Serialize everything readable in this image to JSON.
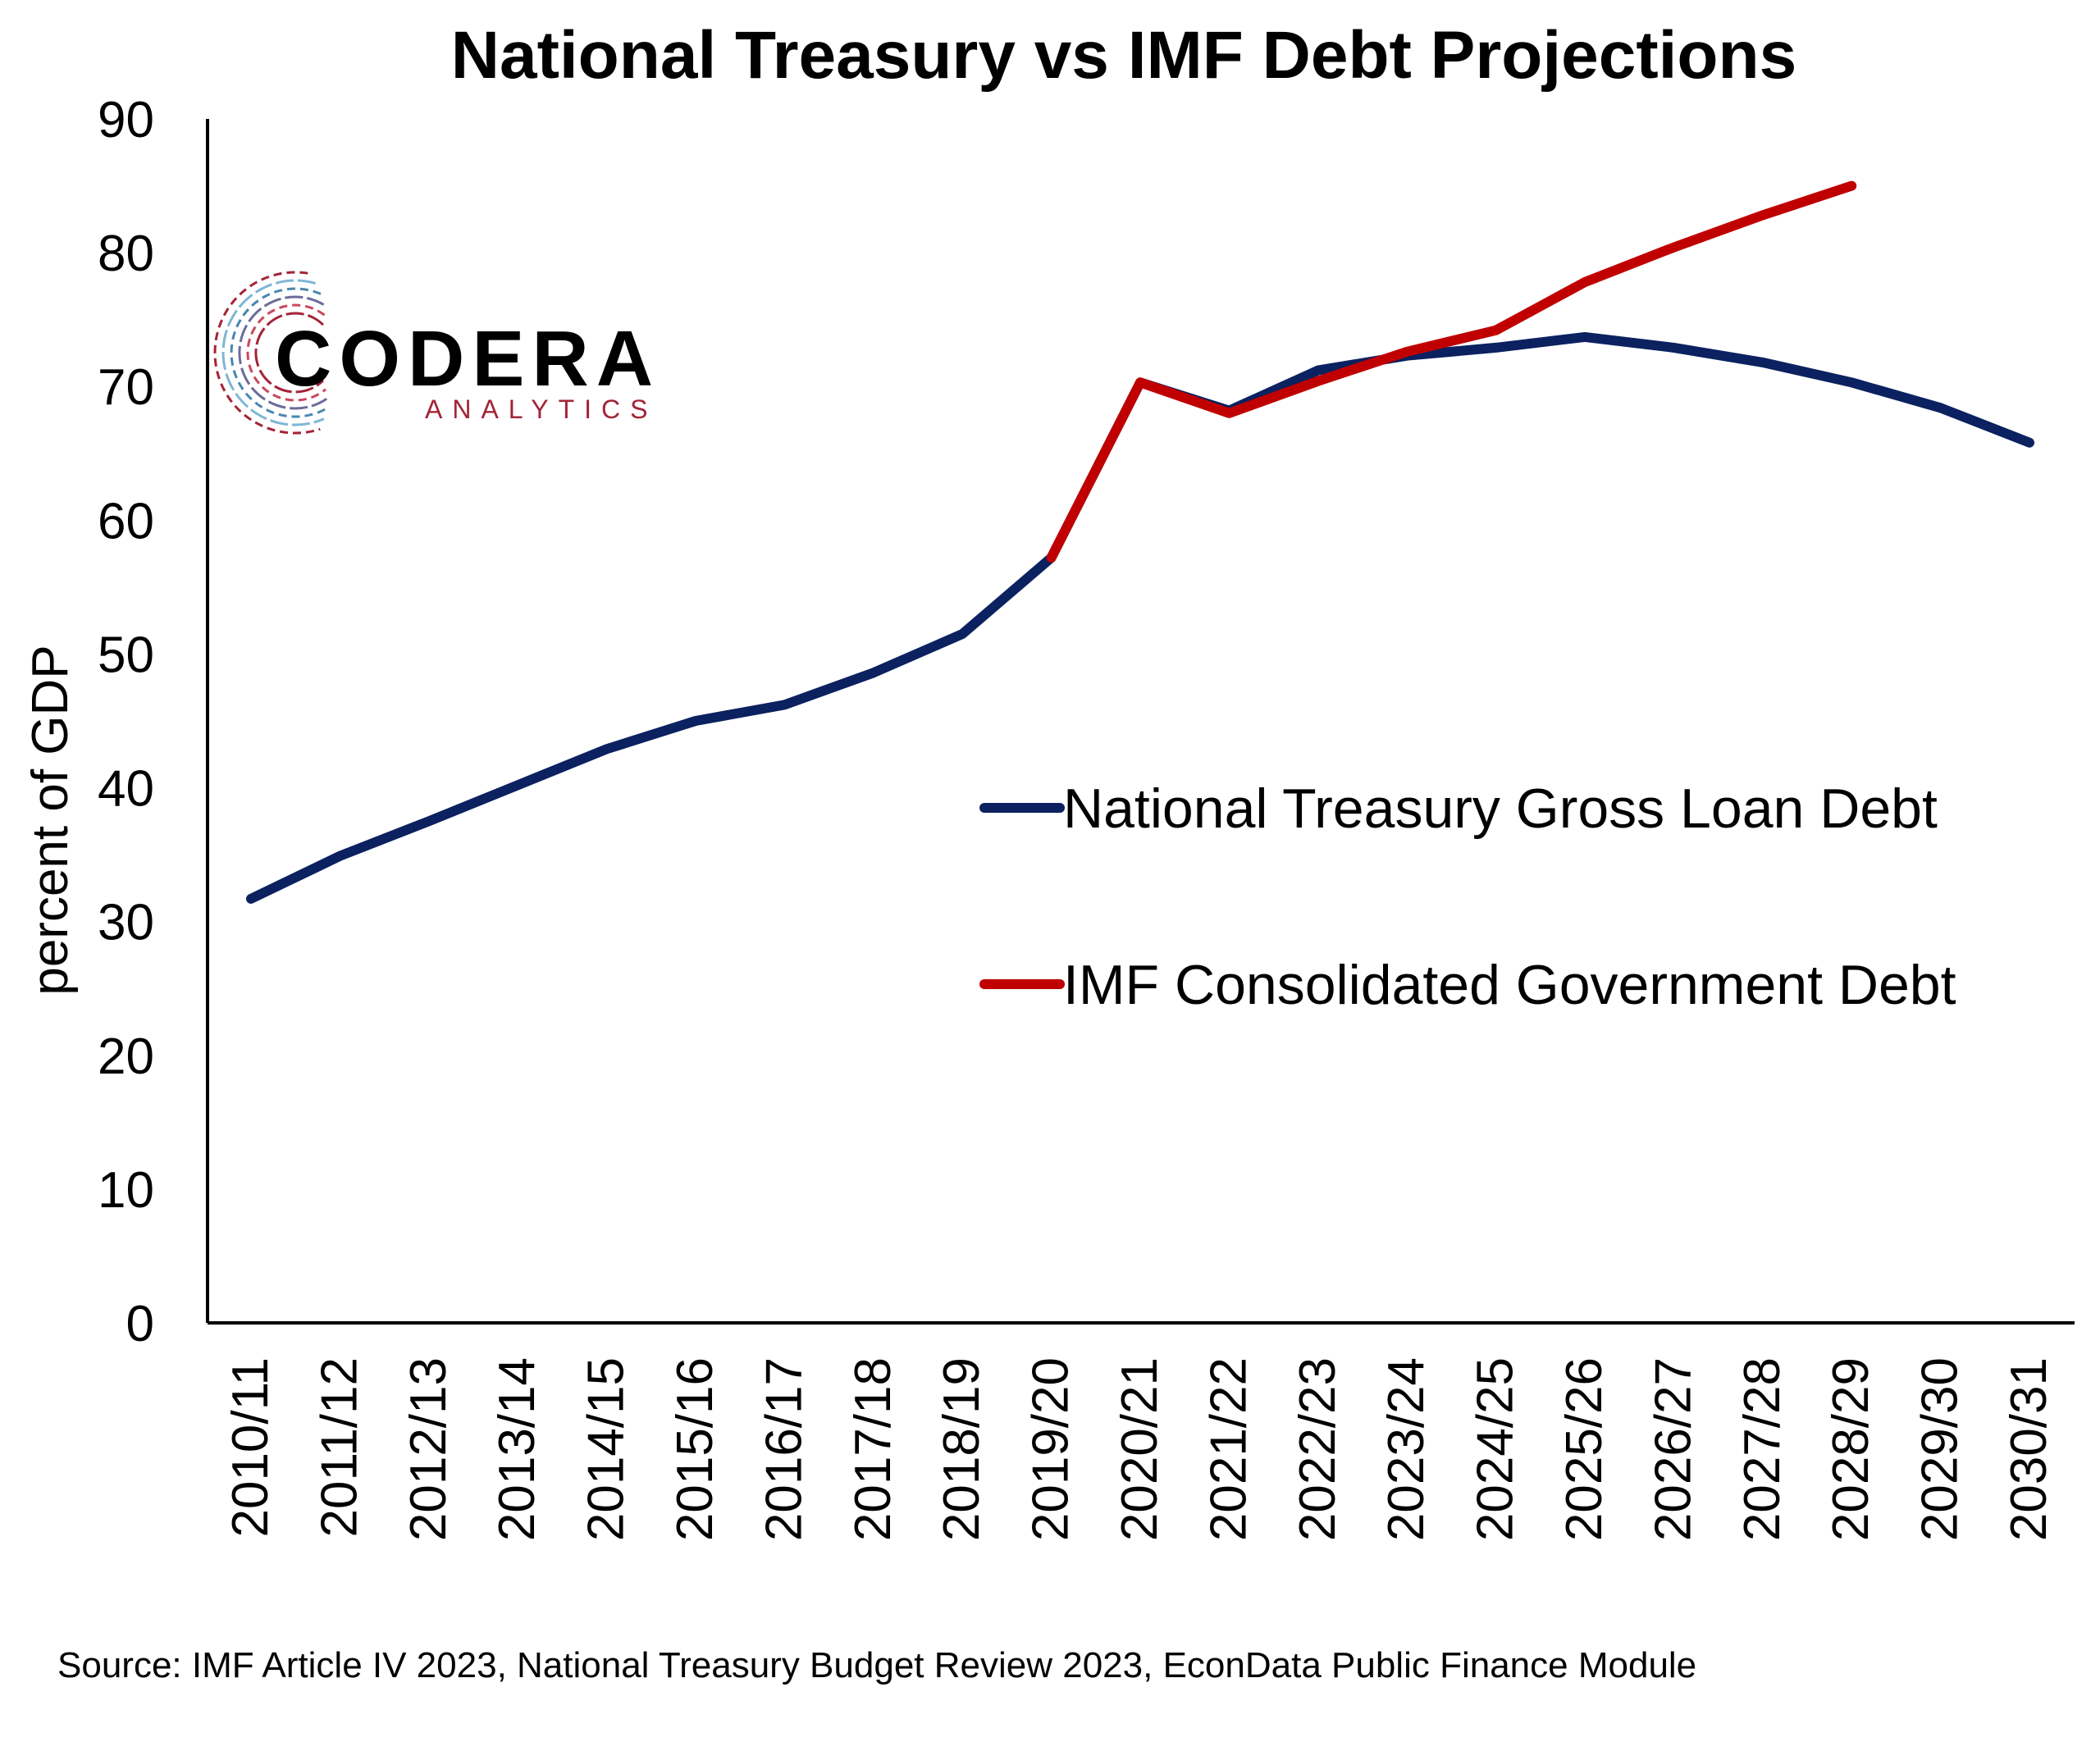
{
  "chart_data": {
    "type": "line",
    "title": "National Treasury vs IMF Debt Projections",
    "xlabel": "",
    "ylabel": "percent of GDP",
    "ylim": [
      0,
      90
    ],
    "yticks": [
      0,
      10,
      20,
      30,
      40,
      50,
      60,
      70,
      80,
      90
    ],
    "grid": false,
    "legend_position": "right-middle",
    "categories": [
      "2010/11",
      "2011/12",
      "2012/13",
      "2013/14",
      "2014/15",
      "2015/16",
      "2016/17",
      "2017/18",
      "2018/19",
      "2019/20",
      "2020/21",
      "2021/22",
      "2022/23",
      "2023/24",
      "2024/25",
      "2025/26",
      "2026/27",
      "2027/28",
      "2028/29",
      "2029/30",
      "2030/31"
    ],
    "series": [
      {
        "name": "National Treasury Gross Loan Debt",
        "color": "#0b2160",
        "values": [
          31.7,
          34.9,
          37.5,
          40.2,
          42.9,
          45.0,
          46.2,
          48.6,
          51.5,
          57.2,
          70.3,
          68.2,
          71.2,
          72.3,
          72.9,
          73.7,
          72.9,
          71.8,
          70.3,
          68.4,
          65.8
        ]
      },
      {
        "name": "IMF Consolidated Government Debt",
        "color": "#c00000",
        "values": [
          null,
          null,
          null,
          null,
          null,
          null,
          null,
          null,
          null,
          57.2,
          70.3,
          68.0,
          70.4,
          72.6,
          74.2,
          77.8,
          80.4,
          82.8,
          85.0,
          null,
          null
        ]
      }
    ]
  },
  "source": "Source: IMF Article IV 2023, National Treasury Budget Review 2023, EconData Public Finance Module",
  "logo": {
    "name": "CODERA",
    "tagline": "ANALYTICS"
  }
}
